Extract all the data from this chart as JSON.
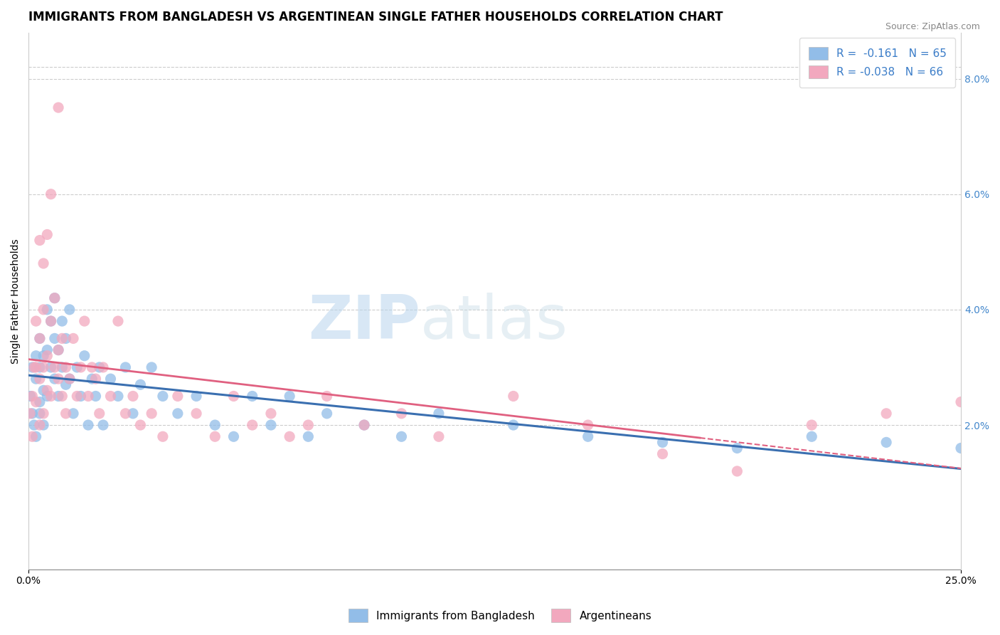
{
  "title": "IMMIGRANTS FROM BANGLADESH VS ARGENTINEAN SINGLE FATHER HOUSEHOLDS CORRELATION CHART",
  "source": "Source: ZipAtlas.com",
  "ylabel": "Single Father Households",
  "right_yticks": [
    "2.0%",
    "4.0%",
    "6.0%",
    "8.0%"
  ],
  "right_ytick_vals": [
    0.02,
    0.04,
    0.06,
    0.08
  ],
  "xlim": [
    0.0,
    0.25
  ],
  "ylim": [
    -0.005,
    0.088
  ],
  "legend_label1": "Immigrants from Bangladesh",
  "legend_label2": "Argentineans",
  "color_blue": "#92BDE8",
  "color_pink": "#F2A8BE",
  "line_color_blue": "#3A6FB0",
  "line_color_pink": "#E06080",
  "watermark_zip": "ZIP",
  "watermark_atlas": "atlas",
  "title_fontsize": 12,
  "axis_label_fontsize": 10,
  "tick_fontsize": 10,
  "blue_x": [
    0.0005,
    0.001,
    0.001,
    0.0015,
    0.002,
    0.002,
    0.002,
    0.003,
    0.003,
    0.003,
    0.003,
    0.004,
    0.004,
    0.004,
    0.005,
    0.005,
    0.005,
    0.006,
    0.006,
    0.007,
    0.007,
    0.007,
    0.008,
    0.008,
    0.009,
    0.009,
    0.01,
    0.01,
    0.011,
    0.011,
    0.012,
    0.013,
    0.014,
    0.015,
    0.016,
    0.017,
    0.018,
    0.019,
    0.02,
    0.022,
    0.024,
    0.026,
    0.028,
    0.03,
    0.033,
    0.036,
    0.04,
    0.045,
    0.05,
    0.055,
    0.06,
    0.065,
    0.07,
    0.075,
    0.08,
    0.09,
    0.1,
    0.11,
    0.13,
    0.15,
    0.17,
    0.19,
    0.21,
    0.23,
    0.25
  ],
  "blue_y": [
    0.025,
    0.022,
    0.03,
    0.02,
    0.028,
    0.032,
    0.018,
    0.024,
    0.03,
    0.035,
    0.022,
    0.026,
    0.032,
    0.02,
    0.025,
    0.033,
    0.04,
    0.03,
    0.038,
    0.028,
    0.035,
    0.042,
    0.025,
    0.033,
    0.03,
    0.038,
    0.027,
    0.035,
    0.028,
    0.04,
    0.022,
    0.03,
    0.025,
    0.032,
    0.02,
    0.028,
    0.025,
    0.03,
    0.02,
    0.028,
    0.025,
    0.03,
    0.022,
    0.027,
    0.03,
    0.025,
    0.022,
    0.025,
    0.02,
    0.018,
    0.025,
    0.02,
    0.025,
    0.018,
    0.022,
    0.02,
    0.018,
    0.022,
    0.02,
    0.018,
    0.017,
    0.016,
    0.018,
    0.017,
    0.016
  ],
  "pink_x": [
    0.0004,
    0.001,
    0.001,
    0.0015,
    0.002,
    0.002,
    0.002,
    0.003,
    0.003,
    0.003,
    0.004,
    0.004,
    0.004,
    0.005,
    0.005,
    0.006,
    0.006,
    0.007,
    0.007,
    0.008,
    0.008,
    0.009,
    0.009,
    0.01,
    0.01,
    0.011,
    0.012,
    0.013,
    0.014,
    0.015,
    0.016,
    0.017,
    0.018,
    0.019,
    0.02,
    0.022,
    0.024,
    0.026,
    0.028,
    0.03,
    0.033,
    0.036,
    0.04,
    0.045,
    0.05,
    0.055,
    0.06,
    0.065,
    0.07,
    0.075,
    0.08,
    0.09,
    0.1,
    0.11,
    0.13,
    0.15,
    0.17,
    0.19,
    0.21,
    0.23,
    0.25,
    0.003,
    0.004,
    0.005,
    0.006,
    0.008
  ],
  "pink_y": [
    0.022,
    0.025,
    0.018,
    0.03,
    0.024,
    0.03,
    0.038,
    0.02,
    0.028,
    0.035,
    0.022,
    0.03,
    0.04,
    0.026,
    0.032,
    0.025,
    0.038,
    0.03,
    0.042,
    0.028,
    0.033,
    0.025,
    0.035,
    0.022,
    0.03,
    0.028,
    0.035,
    0.025,
    0.03,
    0.038,
    0.025,
    0.03,
    0.028,
    0.022,
    0.03,
    0.025,
    0.038,
    0.022,
    0.025,
    0.02,
    0.022,
    0.018,
    0.025,
    0.022,
    0.018,
    0.025,
    0.02,
    0.022,
    0.018,
    0.02,
    0.025,
    0.02,
    0.022,
    0.018,
    0.025,
    0.02,
    0.015,
    0.012,
    0.02,
    0.022,
    0.024,
    0.052,
    0.048,
    0.053,
    0.06,
    0.075
  ],
  "blue_line_x": [
    0.0,
    0.25
  ],
  "blue_line_y": [
    0.026,
    0.017
  ],
  "pink_line_x": [
    0.0,
    0.18
  ],
  "pink_line_y": [
    0.024,
    0.021
  ]
}
